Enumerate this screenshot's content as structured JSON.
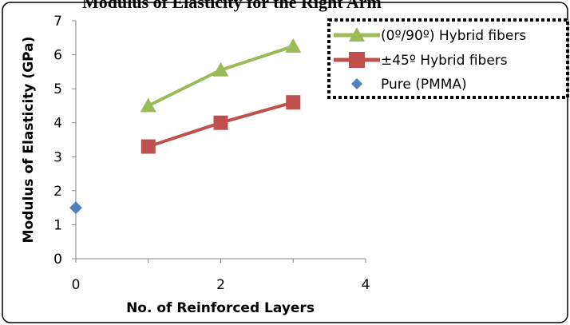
{
  "chart_data": {
    "type": "line",
    "title": "Modulus of Elasticity for the Right Arm",
    "xlabel": "No. of Reinforced Layers",
    "ylabel": "Modulus of Elasticity (GPa)",
    "xlim": [
      0,
      4
    ],
    "ylim": [
      0,
      7
    ],
    "xticks": [
      "0",
      "2",
      "4"
    ],
    "yticks": [
      "0",
      "1",
      "2",
      "3",
      "4",
      "5",
      "6",
      "7"
    ],
    "grid": false,
    "legend_position": "top-right",
    "series": [
      {
        "name": "(0º/90º) Hybrid fibers",
        "marker": "triangle",
        "color": "#9BBB59",
        "x": [
          1,
          2,
          3
        ],
        "y": [
          4.5,
          5.55,
          6.25
        ]
      },
      {
        "name": "±45º Hybrid fibers",
        "marker": "square",
        "color": "#C0504D",
        "x": [
          1,
          2,
          3
        ],
        "y": [
          3.3,
          4.0,
          4.6
        ]
      },
      {
        "name": "Pure (PMMA)",
        "marker": "diamond",
        "color": "#4F81BD",
        "x": [
          0
        ],
        "y": [
          1.5
        ]
      }
    ]
  }
}
